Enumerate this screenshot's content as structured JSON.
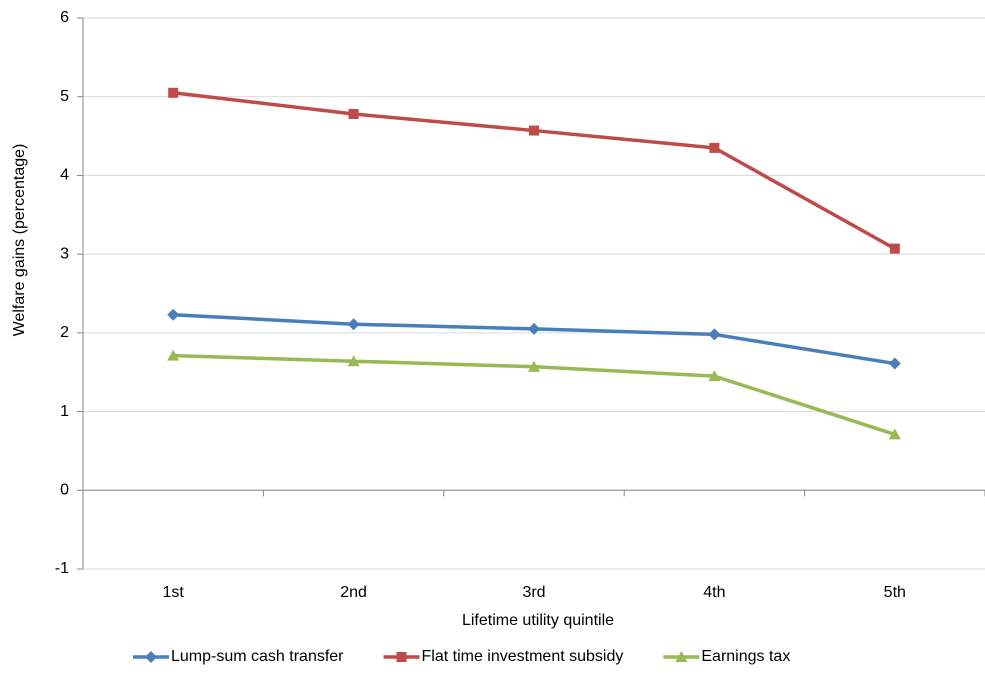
{
  "chart_data": {
    "type": "line",
    "x_label": "Lifetime utility quintile",
    "y_label": "Welfare gains (percentage)",
    "categories": [
      "1st",
      "2nd",
      "3rd",
      "4th",
      "5th"
    ],
    "series": [
      {
        "name": "Lump-sum cash transfer",
        "color": "#4a7ebb",
        "marker": "diamond",
        "values": [
          2.23,
          2.11,
          2.05,
          1.98,
          1.61
        ]
      },
      {
        "name": "Flat time investment subsidy",
        "color": "#be4b48",
        "marker": "square",
        "values": [
          5.05,
          4.78,
          4.57,
          4.35,
          3.07
        ]
      },
      {
        "name": "Earnings tax",
        "color": "#98b954",
        "marker": "triangle",
        "values": [
          1.71,
          1.64,
          1.57,
          1.45,
          0.71
        ]
      }
    ],
    "ylim": [
      -1,
      6
    ],
    "yticks": [
      -1,
      0,
      1,
      2,
      3,
      4,
      5,
      6
    ],
    "grid": true,
    "legend": "bottom"
  }
}
